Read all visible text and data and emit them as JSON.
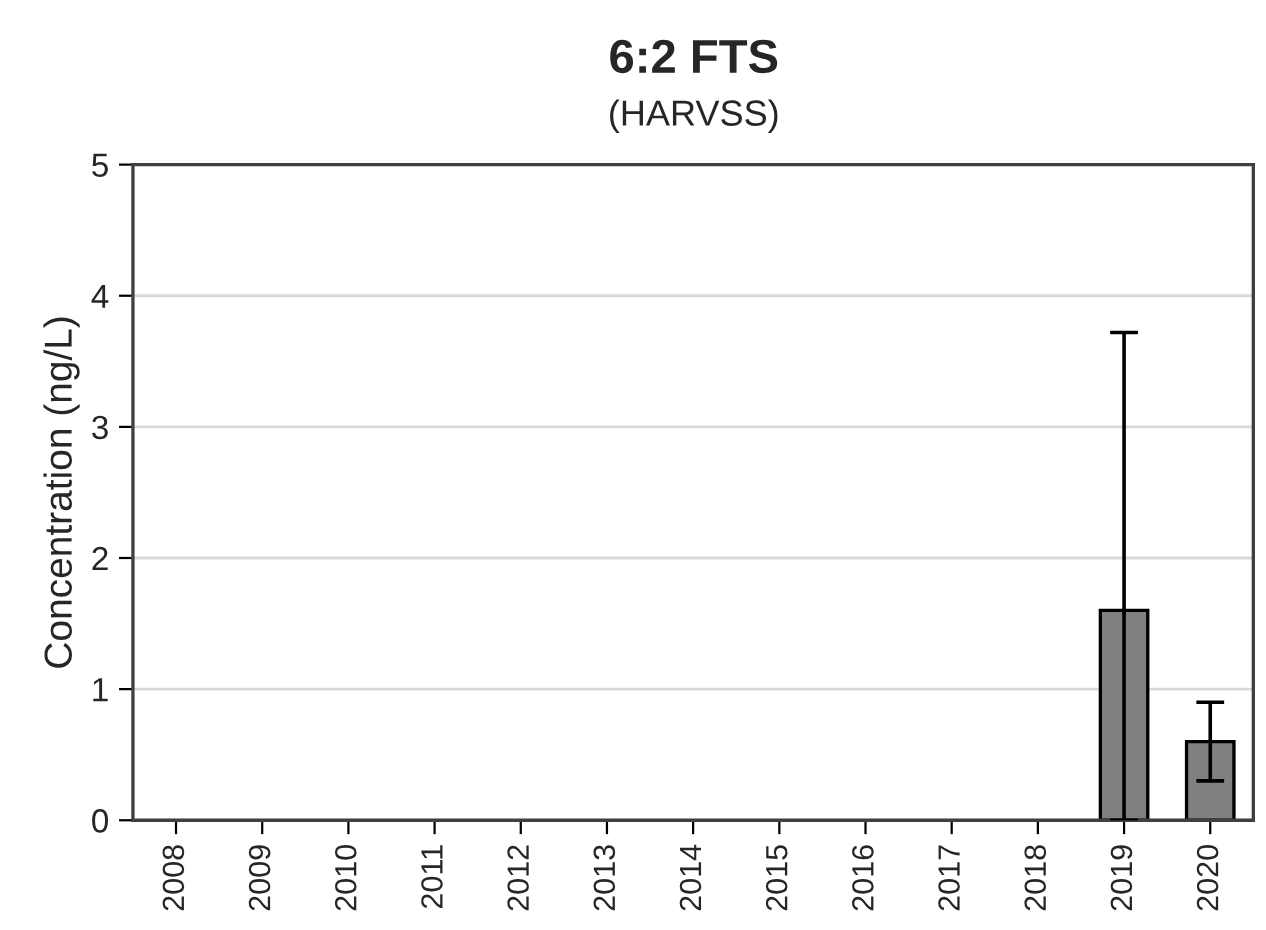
{
  "chart_data": {
    "type": "bar",
    "title": "6:2 FTS",
    "subtitle": "(HARVSS)",
    "ylabel": "Concentration (ng/L)",
    "categories": [
      "2008",
      "2009",
      "2010",
      "2011",
      "2012",
      "2013",
      "2014",
      "2015",
      "2016",
      "2017",
      "2018",
      "2019",
      "2020"
    ],
    "values": [
      null,
      null,
      null,
      null,
      null,
      null,
      null,
      null,
      null,
      null,
      null,
      1.6,
      0.6
    ],
    "errors": [
      null,
      null,
      null,
      null,
      null,
      null,
      null,
      null,
      null,
      null,
      null,
      [
        0,
        3.72
      ],
      0.3
    ],
    "color": "#808080",
    "ylim": [
      0,
      5
    ],
    "yticks": [
      0,
      1,
      2,
      3,
      4,
      5
    ],
    "grid": "y",
    "legend": false
  }
}
